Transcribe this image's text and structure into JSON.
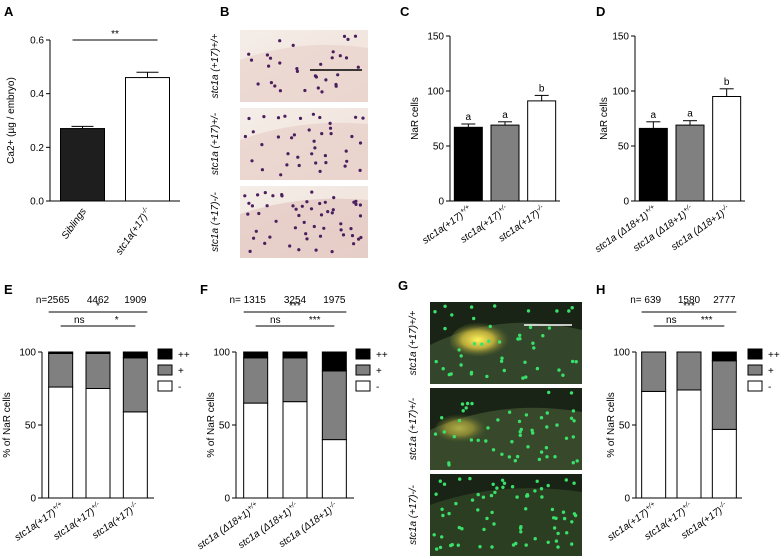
{
  "panels": {
    "A": {
      "label": "A",
      "chart_data": {
        "type": "bar",
        "categories": [
          "Siblings",
          "stc1a(+17)-/-"
        ],
        "values": [
          0.27,
          0.46
        ],
        "errors": [
          0.008,
          0.02
        ],
        "colors": [
          "#1e1e1e",
          "#ffffff"
        ],
        "ylabel": "Ca2+ (µg / embryo)",
        "ylim": [
          0,
          0.6
        ],
        "yticks": [
          "0.0",
          "0.2",
          "0.4",
          "0.6"
        ],
        "significance": "**"
      }
    },
    "B": {
      "label": "B",
      "image_labels": [
        "stc1a (+17)+/+",
        "stc1a (+17)+/-",
        "stc1a (+17)-/-"
      ]
    },
    "C": {
      "label": "C",
      "chart_data": {
        "type": "bar",
        "categories": [
          "stc1a(+17)+/+",
          "stc1a(+17)+/-",
          "stc1a(+17)-/-"
        ],
        "values": [
          67,
          69,
          91
        ],
        "errors": [
          3,
          3,
          5
        ],
        "colors": [
          "#000000",
          "#808080",
          "#ffffff"
        ],
        "letters": [
          "a",
          "a",
          "b"
        ],
        "ylabel": "NaR cells",
        "ylim": [
          0,
          150
        ],
        "yticks": [
          "0",
          "50",
          "100",
          "150"
        ]
      }
    },
    "D": {
      "label": "D",
      "chart_data": {
        "type": "bar",
        "categories": [
          "stc1a (Δ18+1)+/+",
          "stc1a (Δ18+1)+/-",
          "stc1a (Δ18+1)-/-"
        ],
        "values": [
          66,
          69,
          95
        ],
        "errors": [
          6,
          4,
          7
        ],
        "colors": [
          "#000000",
          "#808080",
          "#ffffff"
        ],
        "letters": [
          "a",
          "a",
          "b"
        ],
        "ylabel": "NaR cells",
        "ylim": [
          0,
          150
        ],
        "yticks": [
          "0",
          "50",
          "100",
          "150"
        ]
      }
    },
    "E": {
      "label": "E",
      "n_text": [
        "n=2565",
        "4462",
        "1909"
      ],
      "chart_data": {
        "type": "bar",
        "stacked": true,
        "categories": [
          "stc1a(+17)+/+",
          "stc1a(+17)+/-",
          "stc1a(+17)-/-"
        ],
        "series": [
          {
            "name": "-",
            "color": "#ffffff",
            "values": [
              76,
              75,
              59
            ]
          },
          {
            "name": "+",
            "color": "#808080",
            "values": [
              23,
              24,
              37
            ]
          },
          {
            "name": "++",
            "color": "#000000",
            "values": [
              1,
              1,
              4
            ]
          }
        ],
        "ylabel": "% of NaR cells",
        "ylim": [
          0,
          100
        ],
        "yticks": [
          "0",
          "50",
          "100"
        ],
        "brackets": [
          {
            "from": 0,
            "to": 1,
            "text": "ns",
            "level": 0
          },
          {
            "from": 1,
            "to": 2,
            "text": "*",
            "level": 0
          },
          {
            "from": 0,
            "to": 2,
            "text": "*",
            "level": 1
          }
        ]
      }
    },
    "F": {
      "label": "F",
      "n_text": [
        "n= 1315",
        "3254",
        "1975"
      ],
      "chart_data": {
        "type": "bar",
        "stacked": true,
        "categories": [
          "stc1a (Δ18+1)+/+",
          "stc1a (Δ18+1)+/-",
          "stc1a (Δ18+1)-/-"
        ],
        "series": [
          {
            "name": "-",
            "color": "#ffffff",
            "values": [
              65,
              66,
              40
            ]
          },
          {
            "name": "+",
            "color": "#808080",
            "values": [
              31,
              30,
              47
            ]
          },
          {
            "name": "++",
            "color": "#000000",
            "values": [
              4,
              4,
              13
            ]
          }
        ],
        "ylabel": "% of NaR cells",
        "ylim": [
          0,
          100
        ],
        "yticks": [
          "0",
          "50",
          "100"
        ],
        "brackets": [
          {
            "from": 0,
            "to": 1,
            "text": "ns",
            "level": 0
          },
          {
            "from": 1,
            "to": 2,
            "text": "***",
            "level": 0
          },
          {
            "from": 0,
            "to": 2,
            "text": "***",
            "level": 1
          }
        ]
      }
    },
    "G": {
      "label": "G",
      "image_labels": [
        "stc1a (+17)+/+",
        "stc1a (+17)+/-",
        "stc1a (+17)-/-"
      ]
    },
    "H": {
      "label": "H",
      "n_text": [
        "n=  639",
        "1580",
        "2777"
      ],
      "chart_data": {
        "type": "bar",
        "stacked": true,
        "categories": [
          "stc1a(+17)+/+",
          "stc1a(+17)+/-",
          "stc1a(+17)-/-"
        ],
        "series": [
          {
            "name": "-",
            "color": "#ffffff",
            "values": [
              73,
              74,
              47
            ]
          },
          {
            "name": "+",
            "color": "#808080",
            "values": [
              27,
              26,
              47
            ]
          },
          {
            "name": "++",
            "color": "#000000",
            "values": [
              0,
              0,
              6
            ]
          }
        ],
        "ylabel": "% of NaR cells",
        "ylim": [
          0,
          100
        ],
        "yticks": [
          "0",
          "50",
          "100"
        ],
        "brackets": [
          {
            "from": 0,
            "to": 1,
            "text": "ns",
            "level": 0
          },
          {
            "from": 1,
            "to": 2,
            "text": "***",
            "level": 0
          },
          {
            "from": 0,
            "to": 2,
            "text": "***",
            "level": 1
          }
        ]
      }
    }
  }
}
